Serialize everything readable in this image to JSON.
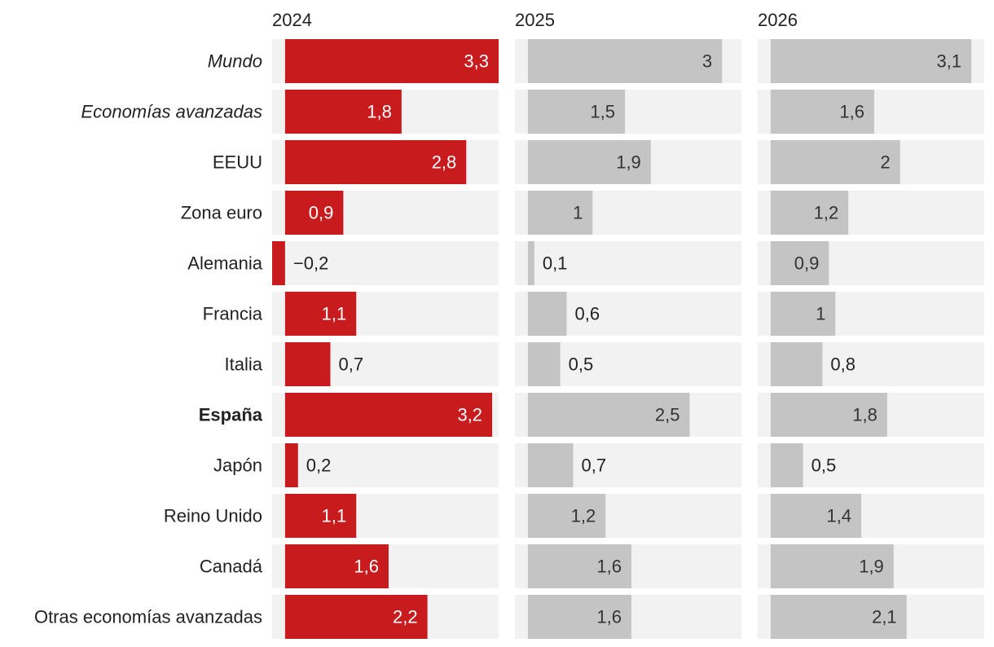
{
  "chart_data": {
    "type": "bar",
    "orientation": "horizontal",
    "layout": "small-multiples",
    "categories": [
      "Mundo",
      "Economías avanzadas",
      "EEUU",
      "Zona euro",
      "Alemania",
      "Francia",
      "Italia",
      "España",
      "Japón",
      "Reino Unido",
      "Canadá",
      "Otras economías avanzadas"
    ],
    "category_styles": [
      "italic",
      "italic",
      "normal",
      "normal",
      "normal",
      "normal",
      "normal",
      "bold",
      "normal",
      "normal",
      "normal",
      "normal"
    ],
    "series": [
      {
        "name": "2024",
        "values": [
          3.3,
          1.8,
          2.8,
          0.9,
          -0.2,
          1.1,
          0.7,
          3.2,
          0.2,
          1.1,
          1.6,
          2.2
        ],
        "labels": [
          "3,3",
          "1,8",
          "2,8",
          "0,9",
          "−0,2",
          "1,1",
          "0,7",
          "3,2",
          "0,2",
          "1,1",
          "1,6",
          "2,2"
        ],
        "color": "#c81b1e",
        "label_color_inside": "#ffffff"
      },
      {
        "name": "2025",
        "values": [
          3.0,
          1.5,
          1.9,
          1.0,
          0.1,
          0.6,
          0.5,
          2.5,
          0.7,
          1.2,
          1.6,
          1.6
        ],
        "labels": [
          "3",
          "1,5",
          "1,9",
          "1",
          "0,1",
          "0,6",
          "0,5",
          "2,5",
          "0,7",
          "1,2",
          "1,6",
          "1,6"
        ],
        "color": "#c4c4c4",
        "label_color_inside": "#333333"
      },
      {
        "name": "2026",
        "values": [
          3.1,
          1.6,
          2.0,
          1.2,
          0.9,
          1.0,
          0.8,
          1.8,
          0.5,
          1.4,
          1.9,
          2.1
        ],
        "labels": [
          "3,1",
          "1,6",
          "2",
          "1,2",
          "0,9",
          "1",
          "0,8",
          "1,8",
          "0,5",
          "1,4",
          "1,9",
          "2,1"
        ],
        "color": "#c4c4c4",
        "label_color_inside": "#333333"
      }
    ],
    "xlim": [
      -0.2,
      3.3
    ],
    "track_color": "#f2f2f2",
    "label_color_outside": "#222222",
    "title": "",
    "xlabel": "",
    "ylabel": "",
    "grid": false,
    "legend": "none"
  }
}
